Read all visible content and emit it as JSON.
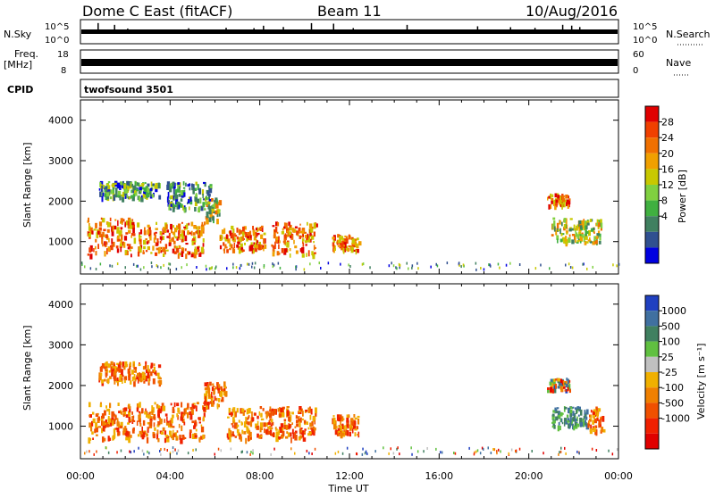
{
  "header": {
    "station": "Dome C East (fitACF)",
    "beam": "Beam 11",
    "date": "10/Aug/2016"
  },
  "panels": {
    "nsky": {
      "label": "N.Sky",
      "left_ticks": [
        "10^5",
        "10^0"
      ],
      "right_ticks": [
        "10^5",
        "10^0"
      ],
      "right_label": "N.Search"
    },
    "freq": {
      "label_top": "Freq.",
      "label_bottom": "[MHz]",
      "left_ticks": [
        "18",
        "8"
      ],
      "right_ticks": [
        "60",
        "0"
      ],
      "right_label": "Nave"
    },
    "cpid": {
      "label": "CPID",
      "value": "twofsound 3501"
    }
  },
  "colorbars": {
    "power": {
      "label": "Power [dB]",
      "ticks": [
        "28",
        "24",
        "20",
        "16",
        "12",
        "8",
        "4"
      ],
      "colors": [
        "#e00000",
        "#f04000",
        "#f07000",
        "#f0a000",
        "#c8c800",
        "#80d040",
        "#40b040",
        "#408060",
        "#305090",
        "#0000e0"
      ]
    },
    "velocity": {
      "label": "Velocity [m s⁻¹]",
      "ticks": [
        "1000",
        "500",
        "100",
        "25",
        "-25",
        "-100",
        "-500",
        "-1000"
      ],
      "colors": [
        "#2040c0",
        "#4070a0",
        "#408060",
        "#60c040",
        "#c0c0c0",
        "#f0b000",
        "#f08000",
        "#f05000",
        "#f02000",
        "#e00000"
      ]
    }
  },
  "chart_data": [
    {
      "type": "heatmap",
      "name": "power",
      "ylabel": "Slant Range [km]",
      "yticks": [
        "1000",
        "2000",
        "3000",
        "4000"
      ],
      "ylim": [
        200,
        4500
      ],
      "xlim": [
        0,
        24
      ],
      "regions": [
        {
          "x": [
            0.3,
            2.4
          ],
          "y": [
            700,
            1600
          ],
          "c": "power-high"
        },
        {
          "x": [
            2.5,
            5.5
          ],
          "y": [
            700,
            1500
          ],
          "c": "power-high"
        },
        {
          "x": [
            5.5,
            6.2
          ],
          "y": [
            1500,
            2100
          ],
          "c": "power-mid"
        },
        {
          "x": [
            6.2,
            8.2
          ],
          "y": [
            800,
            1400
          ],
          "c": "power-high"
        },
        {
          "x": [
            8.5,
            10.5
          ],
          "y": [
            700,
            1500
          ],
          "c": "power-high"
        },
        {
          "x": [
            11.2,
            12.4
          ],
          "y": [
            800,
            1200
          ],
          "c": "power-high"
        },
        {
          "x": [
            20.8,
            21.8
          ],
          "y": [
            1900,
            2200
          ],
          "c": "power-high"
        },
        {
          "x": [
            21.0,
            23.2
          ],
          "y": [
            1000,
            1600
          ],
          "c": "power-mid"
        },
        {
          "x": [
            0.8,
            3.5
          ],
          "y": [
            2100,
            2500
          ],
          "c": "power-low"
        },
        {
          "x": [
            3.8,
            5.8
          ],
          "y": [
            1800,
            2500
          ],
          "c": "power-low"
        }
      ]
    },
    {
      "type": "heatmap",
      "name": "velocity",
      "ylabel": "Slant Range [km]",
      "yticks": [
        "1000",
        "2000",
        "3000",
        "4000"
      ],
      "ylim": [
        200,
        4500
      ],
      "xlim": [
        0,
        24
      ],
      "xticks": [
        "00:00",
        "04:00",
        "08:00",
        "12:00",
        "16:00",
        "20:00",
        "00:00"
      ],
      "xlabel": "Time UT",
      "regions": [
        {
          "x": [
            0.3,
            2.4
          ],
          "y": [
            700,
            1600
          ],
          "c": "vel-neg"
        },
        {
          "x": [
            2.5,
            5.5
          ],
          "y": [
            700,
            1600
          ],
          "c": "vel-neg"
        },
        {
          "x": [
            5.5,
            6.5
          ],
          "y": [
            1500,
            2100
          ],
          "c": "vel-neg"
        },
        {
          "x": [
            6.5,
            8.5
          ],
          "y": [
            700,
            1500
          ],
          "c": "vel-neg"
        },
        {
          "x": [
            8.5,
            10.5
          ],
          "y": [
            700,
            1500
          ],
          "c": "vel-neg"
        },
        {
          "x": [
            11.2,
            12.4
          ],
          "y": [
            800,
            1300
          ],
          "c": "vel-neg"
        },
        {
          "x": [
            20.8,
            21.8
          ],
          "y": [
            1900,
            2200
          ],
          "c": "vel-mix"
        },
        {
          "x": [
            21.0,
            22.6
          ],
          "y": [
            1000,
            1500
          ],
          "c": "vel-pos"
        },
        {
          "x": [
            22.6,
            23.3
          ],
          "y": [
            900,
            1500
          ],
          "c": "vel-neg"
        },
        {
          "x": [
            0.8,
            3.5
          ],
          "y": [
            2100,
            2600
          ],
          "c": "vel-neg"
        }
      ]
    }
  ]
}
